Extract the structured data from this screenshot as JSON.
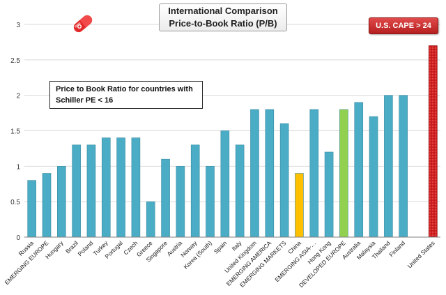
{
  "title_line1": "International Comparison",
  "title_line2": "Price-to-Book Ratio (P/B)",
  "badge_text": "U.S. CAPE > 24",
  "note_line1": "Price to Book Ratio for countries with",
  "note_line2": "Schiller PE < 16",
  "logo_icon": "pill-capsule-icon",
  "colors": {
    "default_bar": "#4bacc6",
    "china_bar": "#ffc000",
    "developed_europe_bar": "#92d050",
    "united_states_bar": "#c00000",
    "badge": "#c0392b"
  },
  "chart_data": {
    "type": "bar",
    "categories": [
      "Russia",
      "EMERGING EUROPE",
      "Hungary",
      "Brazil",
      "Poland",
      "Turkey",
      "Portugal",
      "Czech",
      "Greece",
      "Singapore",
      "Austria",
      "Norway",
      "Korea (South)",
      "Spain",
      "Italy",
      "United Kingdom",
      "EMERGING AMERICA",
      "EMERGING MARKETS",
      "China",
      "EMERGING ASIA-…",
      "Hong Kong",
      "DEVELOPED EUROPE",
      "Australia",
      "Malaysia",
      "Thailand",
      "Finland",
      "",
      "United States"
    ],
    "values": [
      0.8,
      0.9,
      1.0,
      1.3,
      1.3,
      1.4,
      1.4,
      1.4,
      0.5,
      1.1,
      1.0,
      1.3,
      1.0,
      1.5,
      1.3,
      1.8,
      1.8,
      1.6,
      0.9,
      1.8,
      1.2,
      1.8,
      1.9,
      1.7,
      2.0,
      2.0,
      null,
      2.7
    ],
    "highlight": {
      "China": "china_bar",
      "DEVELOPED EUROPE": "developed_europe_bar",
      "United States": "united_states_bar"
    },
    "ylim": [
      0,
      3
    ],
    "yticks": [
      "0",
      "0.5",
      "1",
      "1.5",
      "2",
      "2.5",
      "3"
    ],
    "grid": true,
    "xlabel": "",
    "ylabel": ""
  }
}
